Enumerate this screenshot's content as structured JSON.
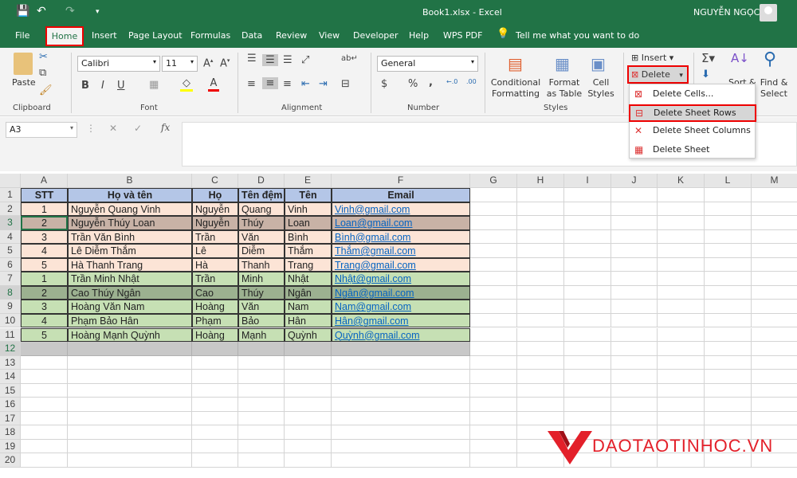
{
  "titlebar": {
    "title": "Book1.xlsx  -  Excel",
    "user": "NGUYỄN NGỌC"
  },
  "tabs": [
    "File",
    "Home",
    "Insert",
    "Page Layout",
    "Formulas",
    "Data",
    "Review",
    "View",
    "Developer",
    "Help",
    "WPS PDF"
  ],
  "tell_me": "Tell me what you want to do",
  "ribbon": {
    "clipboard": {
      "paste": "Paste",
      "label": "Clipboard"
    },
    "font": {
      "name": "Calibri",
      "size": "11",
      "label": "Font",
      "bold": "B",
      "italic": "I",
      "underline": "U",
      "fill_color": "#ffff00",
      "font_color": "#ff0000"
    },
    "alignment": {
      "label": "Alignment"
    },
    "number": {
      "format": "General",
      "label": "Number",
      "percent": "%",
      "comma": ","
    },
    "styles": {
      "conditional": "Conditional Formatting",
      "format_table": "Format as Table",
      "cell_styles": "Cell Styles",
      "label": "Styles"
    },
    "cells": {
      "insert": "Insert",
      "delete": "Delete"
    },
    "editing": {
      "sort": "Sort &",
      "find": "Find & Select"
    }
  },
  "delete_menu": [
    "Delete Cells...",
    "Delete Sheet Rows",
    "Delete Sheet Columns",
    "Delete Sheet"
  ],
  "delete_menu_highlighted": "Delete Sheet Rows",
  "formula_bar": {
    "name_box": "A3",
    "fx": "fx",
    "value": ""
  },
  "columns": [
    "A",
    "B",
    "C",
    "D",
    "E",
    "F",
    "G",
    "H",
    "I",
    "J",
    "K",
    "L",
    "M"
  ],
  "table": {
    "headers": [
      "STT",
      "Họ và tên",
      "Họ",
      "Tên đệm",
      "Tên",
      "Email"
    ],
    "rows": [
      [
        "1",
        "Nguyễn Quang Vinh",
        "Nguyễn",
        "Quang",
        "Vinh",
        "Vinh@gmail.com"
      ],
      [
        "2",
        "Nguyễn Thúy Loan",
        "Nguyễn",
        "Thúy",
        "Loan",
        "Loan@gmail.com"
      ],
      [
        "3",
        "Trần Văn Bình",
        "Trần",
        "Văn",
        "Bình",
        "Bình@gmail.com"
      ],
      [
        "4",
        "Lê Diễm Thắm",
        "Lê",
        "Diễm",
        "Thắm",
        "Thắm@gmail.com"
      ],
      [
        "5",
        "Hà Thanh Trang",
        "Hà",
        "Thanh",
        "Trang",
        "Trang@gmail.com"
      ],
      [
        "1",
        "Trần Minh Nhật",
        "Trần",
        "Minh",
        "Nhật",
        "Nhật@gmail.com"
      ],
      [
        "2",
        "Cao Thúy Ngân",
        "Cao",
        "Thúy",
        "Ngân",
        "Ngân@gmail.com"
      ],
      [
        "3",
        "Hoàng Văn Nam",
        "Hoàng",
        "Văn",
        "Nam",
        "Nam@gmail.com"
      ],
      [
        "4",
        "Phạm Bảo Hân",
        "Phạm",
        "Bảo",
        "Hân",
        "Hân@gmail.com"
      ],
      [
        "5",
        "Hoàng Mạnh Quỳnh",
        "Hoàng",
        "Mạnh",
        "Quỳnh",
        "Quỳnh@gmail.com"
      ]
    ],
    "selected_rows": [
      3,
      8,
      12
    ]
  },
  "row_count": 20,
  "colors": {
    "excel_green": "#217346",
    "header_fill": "#b4c6e7",
    "pink_fill": "#fce4d6",
    "green_fill": "#c6e0b4",
    "highlight": "#e00000",
    "logo_red": "#e3202a"
  },
  "logo": "DAOTAOTINHOC.VN"
}
